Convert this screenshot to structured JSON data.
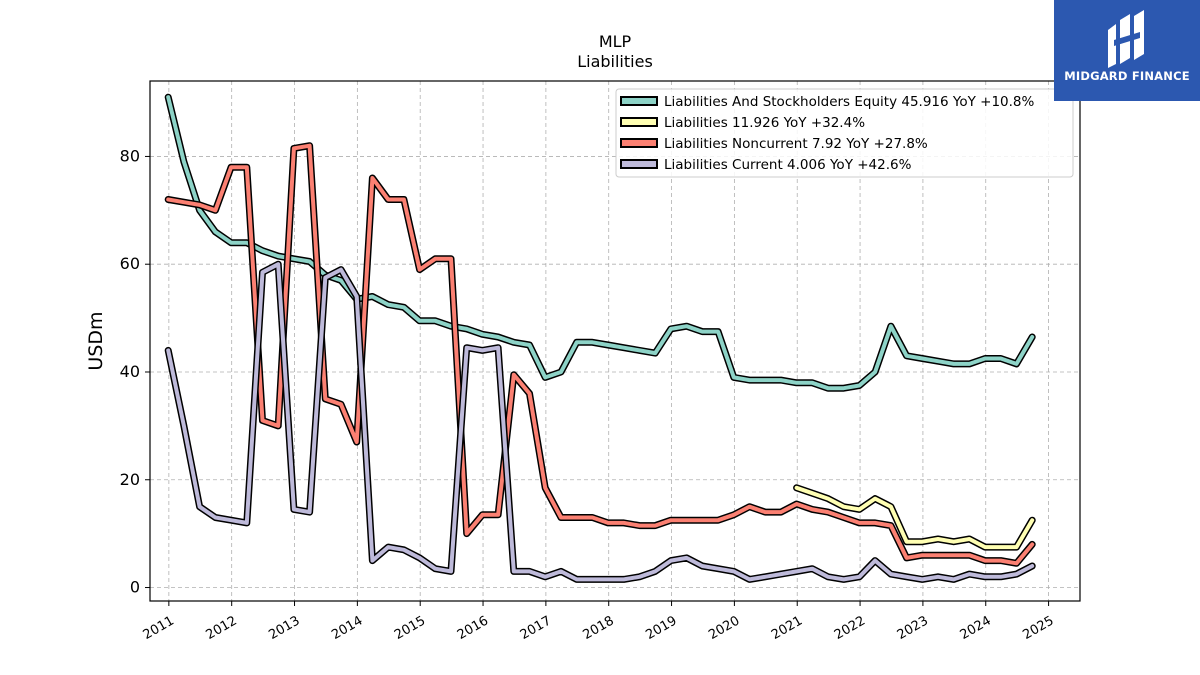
{
  "chart_data": {
    "type": "line",
    "title": "MLP",
    "subtitle": "Liabilities",
    "ylabel": "USDm",
    "xlabel": "",
    "ylim": [
      -2.5,
      94
    ],
    "xlim": [
      2010.7,
      2025.5
    ],
    "yticks": [
      0,
      20,
      40,
      60,
      80
    ],
    "xticks": [
      "2011",
      "2012",
      "2013",
      "2014",
      "2015",
      "2016",
      "2017",
      "2018",
      "2019",
      "2020",
      "2021",
      "2022",
      "2023",
      "2024",
      "2025"
    ],
    "grid": true,
    "legend_position": "top-right",
    "series": [
      {
        "name": "Liabilities And Stockholders Equity  45.916 YoY +10.8%",
        "color": "#8dd3c7",
        "x": [
          2010.99,
          2011.24,
          2011.49,
          2011.74,
          2011.99,
          2012.24,
          2012.49,
          2012.74,
          2012.99,
          2013.24,
          2013.49,
          2013.74,
          2013.99,
          2014.24,
          2014.49,
          2014.74,
          2014.99,
          2015.24,
          2015.49,
          2015.74,
          2015.99,
          2016.24,
          2016.49,
          2016.74,
          2016.99,
          2017.24,
          2017.49,
          2017.74,
          2017.99,
          2018.24,
          2018.49,
          2018.74,
          2018.99,
          2019.24,
          2019.49,
          2019.74,
          2019.99,
          2020.24,
          2020.49,
          2020.74,
          2020.99,
          2021.24,
          2021.49,
          2021.74,
          2021.99,
          2022.24,
          2022.49,
          2022.74,
          2022.99,
          2023.24,
          2023.49,
          2023.74,
          2023.99,
          2024.24,
          2024.49,
          2024.74
        ],
        "y": [
          91,
          79,
          70,
          66,
          64,
          64,
          62.5,
          61.5,
          61,
          60.5,
          58,
          57,
          53.5,
          54,
          52.5,
          52,
          49.5,
          49.5,
          48.5,
          48,
          47,
          46.5,
          45.5,
          45,
          39,
          40,
          45.5,
          45.5,
          45,
          44.5,
          44,
          43.5,
          48,
          48.5,
          47.5,
          47.5,
          39,
          38.5,
          38.5,
          38.5,
          38,
          38,
          37,
          37,
          37.5,
          40,
          48.5,
          43,
          42.5,
          42,
          41.5,
          41.5,
          42.5,
          42.5,
          41.5,
          46.5
        ]
      },
      {
        "name": "Liabilities  11.926 YoY +32.4%",
        "color": "#ffffb3",
        "x": [
          2020.99,
          2021.24,
          2021.49,
          2021.74,
          2021.99,
          2022.24,
          2022.49,
          2022.74,
          2022.99,
          2023.24,
          2023.49,
          2023.74,
          2023.99,
          2024.24,
          2024.49,
          2024.74
        ],
        "y": [
          18.5,
          17.5,
          16.5,
          15,
          14.5,
          16.5,
          15,
          8.5,
          8.5,
          9,
          8.5,
          9,
          7.5,
          7.5,
          7.5,
          12.5
        ]
      },
      {
        "name": "Liabilities Noncurrent  7.92 YoY +27.8%",
        "color": "#fb8072",
        "x": [
          2010.99,
          2011.24,
          2011.49,
          2011.74,
          2011.99,
          2012.24,
          2012.49,
          2012.74,
          2012.99,
          2013.24,
          2013.49,
          2013.74,
          2013.99,
          2014.24,
          2014.49,
          2014.74,
          2014.99,
          2015.24,
          2015.49,
          2015.74,
          2015.99,
          2016.24,
          2016.49,
          2016.74,
          2016.99,
          2017.24,
          2017.49,
          2017.74,
          2017.99,
          2018.24,
          2018.49,
          2018.74,
          2018.99,
          2019.24,
          2019.49,
          2019.74,
          2019.99,
          2020.24,
          2020.49,
          2020.74,
          2020.99,
          2021.24,
          2021.49,
          2021.74,
          2021.99,
          2022.24,
          2022.49,
          2022.74,
          2022.99,
          2023.24,
          2023.49,
          2023.74,
          2023.99,
          2024.24,
          2024.49,
          2024.74
        ],
        "y": [
          72,
          71.5,
          71,
          70,
          78,
          78,
          31,
          30,
          81.5,
          82,
          35,
          34,
          27,
          76,
          72,
          72,
          59,
          61,
          61,
          10,
          13.5,
          13.5,
          39.5,
          36,
          18.5,
          13,
          13,
          13,
          12,
          12,
          11.5,
          11.5,
          12.5,
          12.5,
          12.5,
          12.5,
          13.5,
          15,
          14,
          14,
          15.5,
          14.5,
          14,
          13,
          12,
          12,
          11.5,
          5.5,
          6,
          6,
          6,
          6,
          5,
          5,
          4.5,
          8
        ]
      },
      {
        "name": "Liabilities Current  4.006 YoY +42.6%",
        "color": "#bebada",
        "x": [
          2010.99,
          2011.24,
          2011.49,
          2011.74,
          2011.99,
          2012.24,
          2012.49,
          2012.74,
          2012.99,
          2013.24,
          2013.49,
          2013.74,
          2013.99,
          2014.24,
          2014.49,
          2014.74,
          2014.99,
          2015.24,
          2015.49,
          2015.74,
          2015.99,
          2016.24,
          2016.49,
          2016.74,
          2016.99,
          2017.24,
          2017.49,
          2017.74,
          2017.99,
          2018.24,
          2018.49,
          2018.74,
          2018.99,
          2019.24,
          2019.49,
          2019.74,
          2019.99,
          2020.24,
          2020.49,
          2020.74,
          2020.99,
          2021.24,
          2021.49,
          2021.74,
          2021.99,
          2022.24,
          2022.49,
          2022.74,
          2022.99,
          2023.24,
          2023.49,
          2023.74,
          2023.99,
          2024.24,
          2024.49,
          2024.74
        ],
        "y": [
          44,
          30,
          15,
          13,
          12.5,
          12,
          58.5,
          60,
          14.5,
          14,
          57.5,
          59,
          54,
          5,
          7.5,
          7,
          5.5,
          3.5,
          3,
          44.5,
          44,
          44.5,
          3,
          3,
          2,
          3,
          1.5,
          1.5,
          1.5,
          1.5,
          2,
          3,
          5,
          5.5,
          4,
          3.5,
          3,
          1.5,
          2,
          2.5,
          3,
          3.5,
          2,
          1.5,
          2,
          5,
          2.5,
          2,
          1.5,
          2,
          1.5,
          2.5,
          2,
          2,
          2.5,
          4
        ]
      }
    ]
  },
  "logo": {
    "name": "MIDGARD FINANCE",
    "color": "#2c58b0"
  }
}
